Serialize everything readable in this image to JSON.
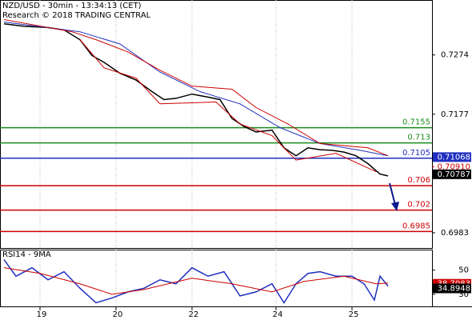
{
  "chart_data": [
    {
      "type": "line",
      "title": "NZD/USD - 30min - 13:34:13 (CET)",
      "subtitle": "Research © 2018 TRADING CENTRAL",
      "xlim": [
        0,
        540
      ],
      "xticks": [
        {
          "value": 50,
          "label": "19"
        },
        {
          "value": 145,
          "label": "20"
        },
        {
          "value": 240,
          "label": "22"
        },
        {
          "value": 345,
          "label": "24"
        },
        {
          "value": 440,
          "label": "25"
        }
      ],
      "ylim": [
        0.6958,
        0.7364
      ],
      "yticks": [
        0.7274,
        0.7177,
        0.6983
      ],
      "series": [
        {
          "color": "#000000",
          "x": [
            5,
            30,
            60,
            80,
            100,
            115,
            130,
            150,
            170,
            190,
            205,
            220,
            240,
            260,
            275,
            290,
            305,
            320,
            340,
            355,
            370,
            385,
            400,
            415,
            430,
            445,
            460,
            475,
            485
          ],
          "values": [
            0.7325,
            0.7321,
            0.7319,
            0.7315,
            0.7299,
            0.7273,
            0.7262,
            0.7244,
            0.7233,
            0.7214,
            0.7201,
            0.7203,
            0.721,
            0.7205,
            0.7201,
            0.717,
            0.7157,
            0.7148,
            0.7151,
            0.7122,
            0.7109,
            0.7122,
            0.7119,
            0.7118,
            0.7115,
            0.7109,
            0.7096,
            0.7079,
            0.7076
          ]
        },
        {
          "color": "#1f2fbf",
          "x": [
            5,
            100,
            150,
            200,
            250,
            300,
            350,
            400,
            450,
            485
          ],
          "values": [
            0.7328,
            0.7312,
            0.7292,
            0.7246,
            0.7214,
            0.7194,
            0.7155,
            0.7129,
            0.7118,
            0.7109
          ]
        },
        {
          "color": "#cc0000",
          "x": [
            5,
            90,
            120,
            160,
            200,
            240,
            290,
            320,
            360,
            400,
            460,
            485
          ],
          "values": [
            0.7332,
            0.7312,
            0.7299,
            0.7279,
            0.7249,
            0.7223,
            0.7218,
            0.7188,
            0.7161,
            0.7129,
            0.7122,
            0.7109
          ]
        },
        {
          "color": "#cc0000",
          "x": [
            100,
            130,
            170,
            200,
            270,
            300,
            340,
            370,
            420,
            470
          ],
          "values": [
            0.7299,
            0.7253,
            0.7236,
            0.7194,
            0.7197,
            0.7161,
            0.7142,
            0.7102,
            0.7113,
            0.7083
          ]
        }
      ],
      "levels": [
        {
          "value": 0.7155,
          "color": "#1a8c1a"
        },
        {
          "value": 0.713,
          "color": "#1a8c1a"
        },
        {
          "value": 0.7105,
          "color": "#1f2fbf"
        },
        {
          "value": 0.706,
          "color": "#cc0000"
        },
        {
          "value": 0.702,
          "color": "#cc0000"
        },
        {
          "value": 0.6985,
          "color": "#cc0000"
        }
      ],
      "price_tags": [
        {
          "value": 0.71068,
          "style": "box",
          "color": "#1f2fbf"
        },
        {
          "value": 0.7091,
          "label": "0.70910",
          "style": "text",
          "color": "#cc0000"
        },
        {
          "value": 0.70787,
          "style": "box",
          "color": "#000000"
        }
      ]
    },
    {
      "type": "line",
      "title": "RSI14 - 9MA",
      "xlim": [
        0,
        540
      ],
      "ylim": [
        20,
        67
      ],
      "yticks": [
        50,
        30
      ],
      "series": [
        {
          "color": "#1f2fbf",
          "x": [
            5,
            20,
            40,
            60,
            80,
            100,
            120,
            140,
            160,
            180,
            200,
            220,
            240,
            260,
            280,
            300,
            320,
            340,
            355,
            370,
            385,
            400,
            420,
            440,
            455,
            468,
            475,
            485
          ],
          "values": [
            58.7,
            45,
            52,
            42,
            48.7,
            35,
            23,
            27,
            32,
            35,
            42,
            38.7,
            52,
            45,
            48.7,
            28.7,
            32,
            38.7,
            23,
            38.7,
            47.3,
            48.7,
            45,
            45,
            38.7,
            25.3,
            45,
            36.7
          ]
        },
        {
          "color": "#cc0000",
          "x": [
            5,
            50,
            100,
            140,
            180,
            240,
            290,
            340,
            380,
            430,
            470,
            485
          ],
          "values": [
            52,
            47.3,
            38.7,
            30,
            34,
            43.3,
            38.7,
            32,
            40.7,
            45,
            38.7,
            39.3
          ]
        }
      ],
      "tags": [
        {
          "value": 38.7083,
          "color": "#cc0000"
        },
        {
          "value": 34.8948,
          "color": "#000000"
        }
      ]
    }
  ]
}
